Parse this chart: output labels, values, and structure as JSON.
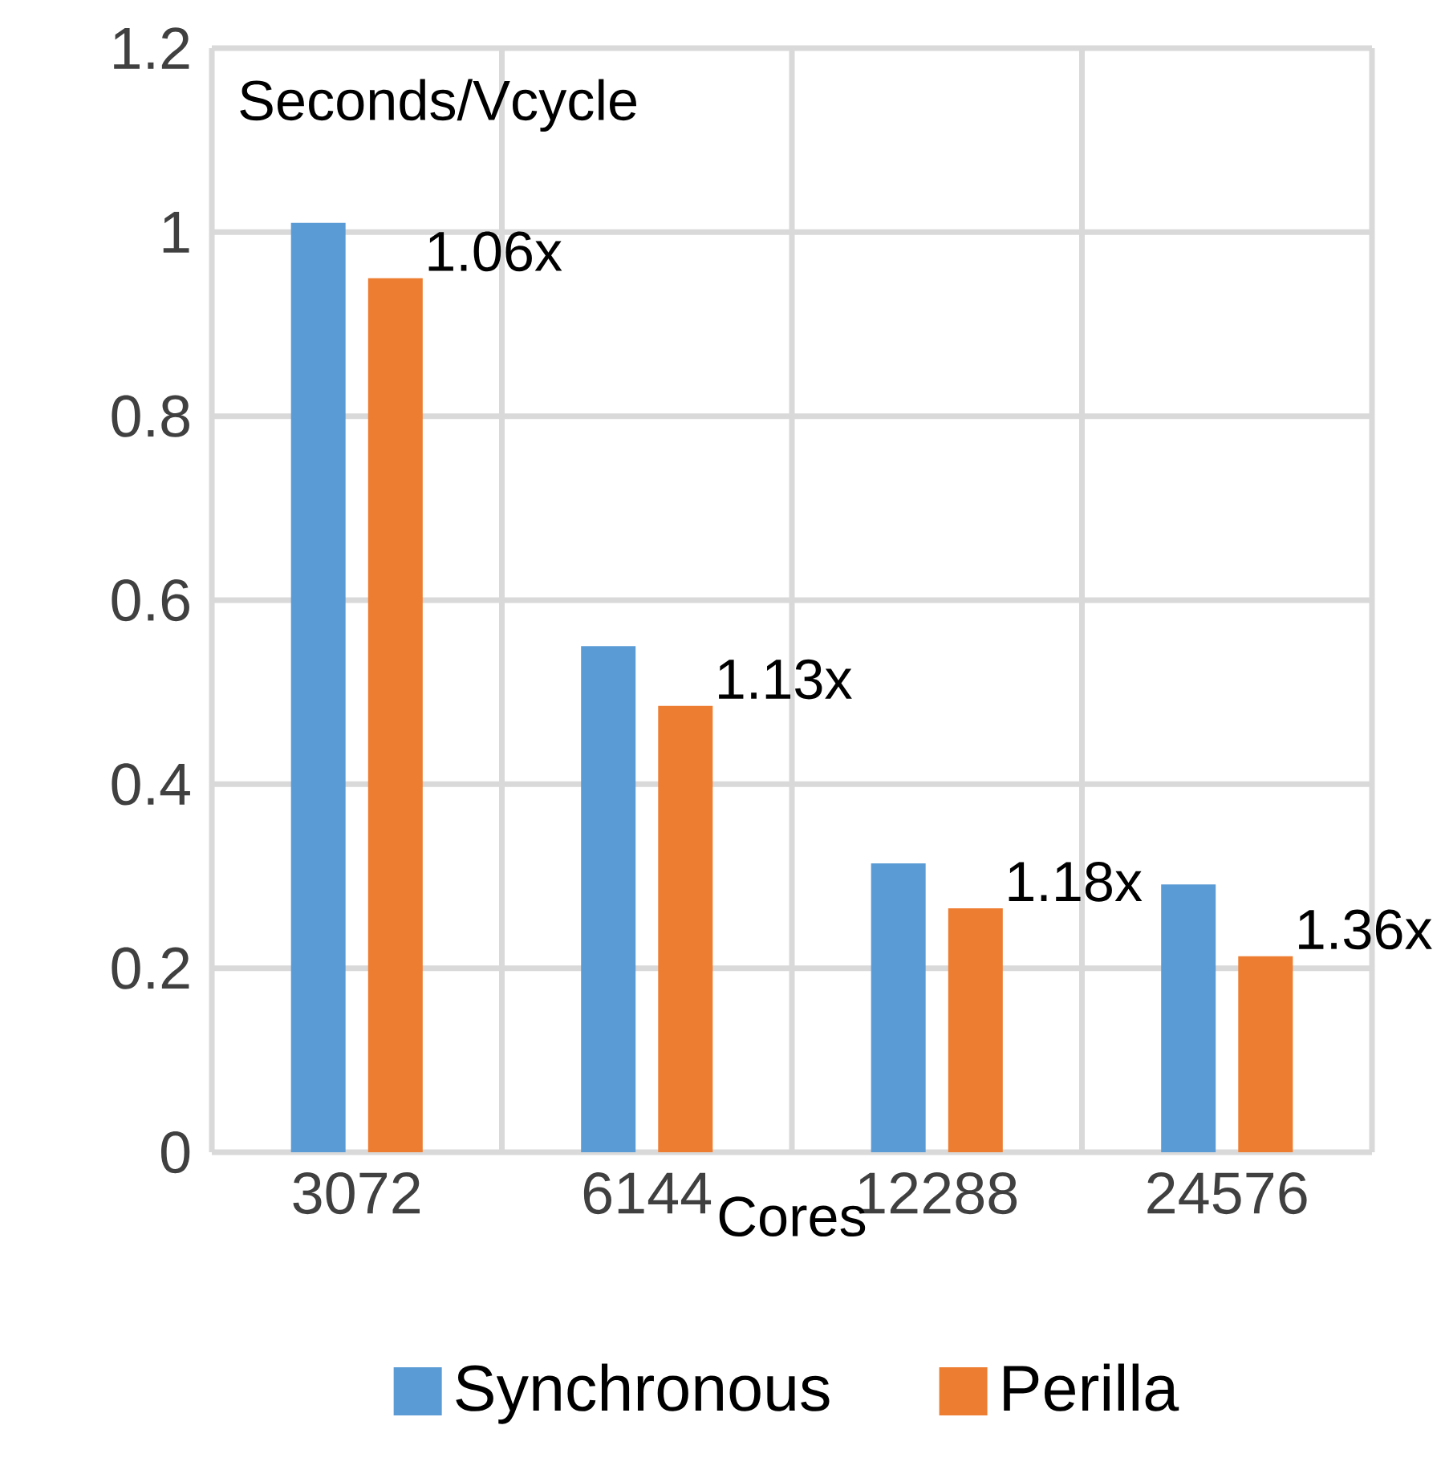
{
  "chart_data": {
    "type": "bar",
    "ylabel": "Seconds/Vcycle",
    "xlabel": "Cores",
    "categories": [
      "3072",
      "6144",
      "12288",
      "24576"
    ],
    "series": [
      {
        "name": "Synchronous",
        "color": "#5b9bd5",
        "values": [
          1.01,
          0.55,
          0.314,
          0.291
        ]
      },
      {
        "name": "Perilla",
        "color": "#ed7d31",
        "values": [
          0.95,
          0.485,
          0.265,
          0.213
        ]
      }
    ],
    "ylim": [
      0,
      1.2
    ],
    "yticks": [
      0,
      0.2,
      0.4,
      0.6,
      0.8,
      1,
      1.2
    ],
    "grid": true,
    "legend": "bottom",
    "annotations": [
      "1.06x",
      "1.13x",
      "1.18x",
      "1.36x"
    ]
  }
}
